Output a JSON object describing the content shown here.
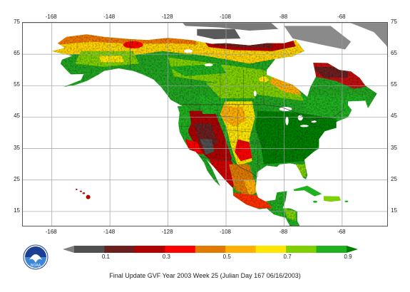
{
  "map": {
    "lon_ticks_top": [
      "-168",
      "-148",
      "-128",
      "-108",
      "-88",
      "-68"
    ],
    "lon_ticks_bottom": [
      "-168",
      "-148",
      "-128",
      "-108",
      "-88",
      "-68"
    ],
    "lat_ticks_left": [
      "75",
      "65",
      "55",
      "45",
      "35",
      "25",
      "15"
    ],
    "lat_ticks_right": [
      "75",
      "65",
      "55",
      "45",
      "35",
      "25",
      "15"
    ],
    "water_color": "#ffffff",
    "grid_color": "#9aa0a6",
    "ice_color": "#8a8a8a",
    "border_color": "#333333"
  },
  "colorbar": {
    "colors": [
      "#808080",
      "#505050",
      "#6b1f1f",
      "#b00000",
      "#ff0000",
      "#e07b00",
      "#ffb000",
      "#ffe600",
      "#7fd000",
      "#20b020",
      "#008000"
    ],
    "labels": [
      "0.1",
      "0.3",
      "0.5",
      "0.7",
      "0.9"
    ]
  },
  "logo": {
    "name": "noaa-logo",
    "text": "NOAA"
  },
  "caption": "Final Update GVF   Year 2003 Week 25 (Julian Day 167 06/16/2003)"
}
